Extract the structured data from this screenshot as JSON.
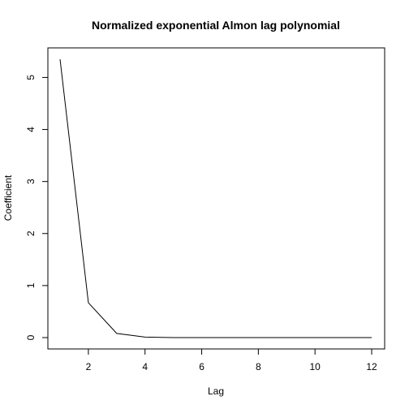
{
  "chart_data": {
    "type": "line",
    "title": "Normalized exponential Almon lag polynomial",
    "xlabel": "Lag",
    "ylabel": "Coefficient",
    "xlim": [
      1,
      12
    ],
    "ylim": [
      0,
      5.35
    ],
    "x_ticks": [
      2,
      4,
      6,
      8,
      10,
      12
    ],
    "y_ticks": [
      0,
      1,
      2,
      3,
      4,
      5
    ],
    "grid": false,
    "series": [
      {
        "x": [
          1,
          2,
          3,
          4,
          5,
          6,
          7,
          8,
          9,
          10,
          11,
          12
        ],
        "values": [
          5.35,
          0.67,
          0.08,
          0.01,
          0.0,
          0.0,
          0.0,
          0.0,
          0.0,
          0.0,
          0.0,
          0.0
        ]
      }
    ]
  }
}
